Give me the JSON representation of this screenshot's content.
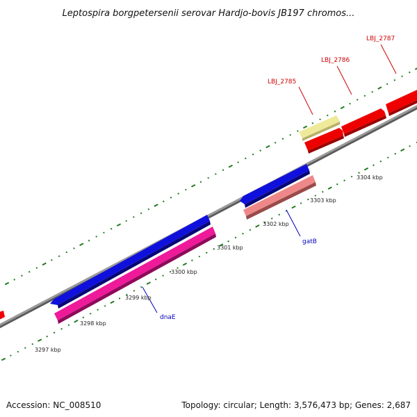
{
  "title": "Leptospira borgpetersenii serovar Hardjo-bovis JB197 chromos...",
  "footer": {
    "accession": "Accession: NC_008510",
    "summary": "Topology: circular; Length: 3,576,473 bp; Genes: 2,687"
  },
  "colors": {
    "backbone": "#8c8c8c",
    "backbone_shadow": "#5a5a5a",
    "tick": "#1f7a1f",
    "forward_label": "#cc0000",
    "reverse_label": "#0000bb",
    "cds_forward": "#ee0000",
    "cds_blue": "#1010dd",
    "cds_pink": "#ee1a9a",
    "cds_salmon": "#ee8888",
    "cds_yellow": "#eeea99"
  },
  "kbp_labels": [
    "3297 kbp",
    "3298 kbp",
    "3299 kbp",
    "3300 kbp",
    "3301 kbp",
    "3302 kbp",
    "3303 kbp",
    "3304 kbp"
  ],
  "gene_labels": {
    "lbj_2785": "LBJ_2785",
    "lbj_2786": "LBJ_2786",
    "lbj_2787": "LBJ_2787",
    "gatB": "gatB",
    "dnaE": "dnaE"
  }
}
